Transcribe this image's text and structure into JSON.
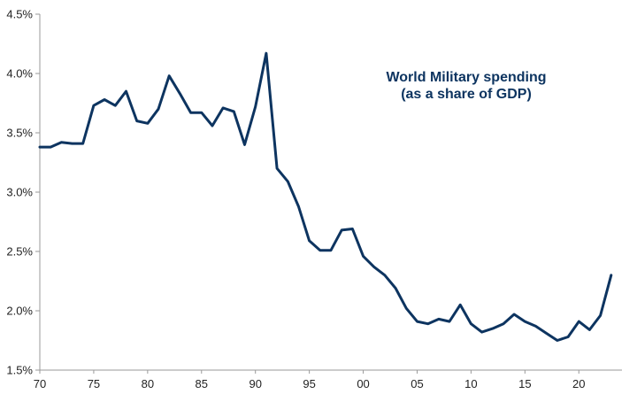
{
  "chart_data": {
    "type": "line",
    "title_lines": [
      "World Military spending",
      "(as a share of GDP)"
    ],
    "xlabel": "",
    "ylabel": "",
    "x_tick_labels": [
      {
        "x": 1970,
        "label": "70"
      },
      {
        "x": 1975,
        "label": "75"
      },
      {
        "x": 1980,
        "label": "80"
      },
      {
        "x": 1985,
        "label": "85"
      },
      {
        "x": 1990,
        "label": "90"
      },
      {
        "x": 1995,
        "label": "95"
      },
      {
        "x": 2000,
        "label": "00"
      },
      {
        "x": 2005,
        "label": "05"
      },
      {
        "x": 2010,
        "label": "10"
      },
      {
        "x": 2015,
        "label": "15"
      },
      {
        "x": 2020,
        "label": "20"
      }
    ],
    "y_tick_labels": [
      {
        "y": 1.5,
        "label": "1.5%"
      },
      {
        "y": 2.0,
        "label": "2.0%"
      },
      {
        "y": 2.5,
        "label": "2.5%"
      },
      {
        "y": 3.0,
        "label": "3.0%"
      },
      {
        "y": 3.5,
        "label": "3.5%"
      },
      {
        "y": 4.0,
        "label": "4.0%"
      },
      {
        "y": 4.5,
        "label": "4.5%"
      }
    ],
    "xlim": [
      1970,
      2024
    ],
    "ylim": [
      1.5,
      4.5
    ],
    "grid": false,
    "legend": "none",
    "line_color": "#0d3460",
    "series": [
      {
        "x": [
          1970,
          1971,
          1972,
          1973,
          1974,
          1975,
          1976,
          1977,
          1978,
          1979,
          1980,
          1981,
          1982,
          1983,
          1984,
          1985,
          1986,
          1987,
          1988,
          1989,
          1990,
          1991,
          1992,
          1993,
          1994,
          1995,
          1996,
          1997,
          1998,
          1999,
          2000,
          2001,
          2002,
          2003,
          2004,
          2005,
          2006,
          2007,
          2008,
          2009,
          2010,
          2011,
          2012,
          2013,
          2014,
          2015,
          2016,
          2017,
          2018,
          2019,
          2020,
          2021,
          2022,
          2023
        ],
        "values": [
          3.38,
          3.38,
          3.42,
          3.41,
          3.41,
          3.73,
          3.78,
          3.73,
          3.85,
          3.6,
          3.58,
          3.7,
          3.98,
          3.83,
          3.67,
          3.67,
          3.56,
          3.71,
          3.68,
          3.4,
          3.72,
          4.17,
          3.2,
          3.09,
          2.88,
          2.59,
          2.51,
          2.51,
          2.68,
          2.69,
          2.46,
          2.37,
          2.3,
          2.19,
          2.02,
          1.91,
          1.89,
          1.93,
          1.91,
          2.05,
          1.89,
          1.82,
          1.85,
          1.89,
          1.97,
          1.91,
          1.87,
          1.81,
          1.75,
          1.78,
          1.91,
          1.84,
          1.96,
          2.3
        ]
      }
    ]
  }
}
